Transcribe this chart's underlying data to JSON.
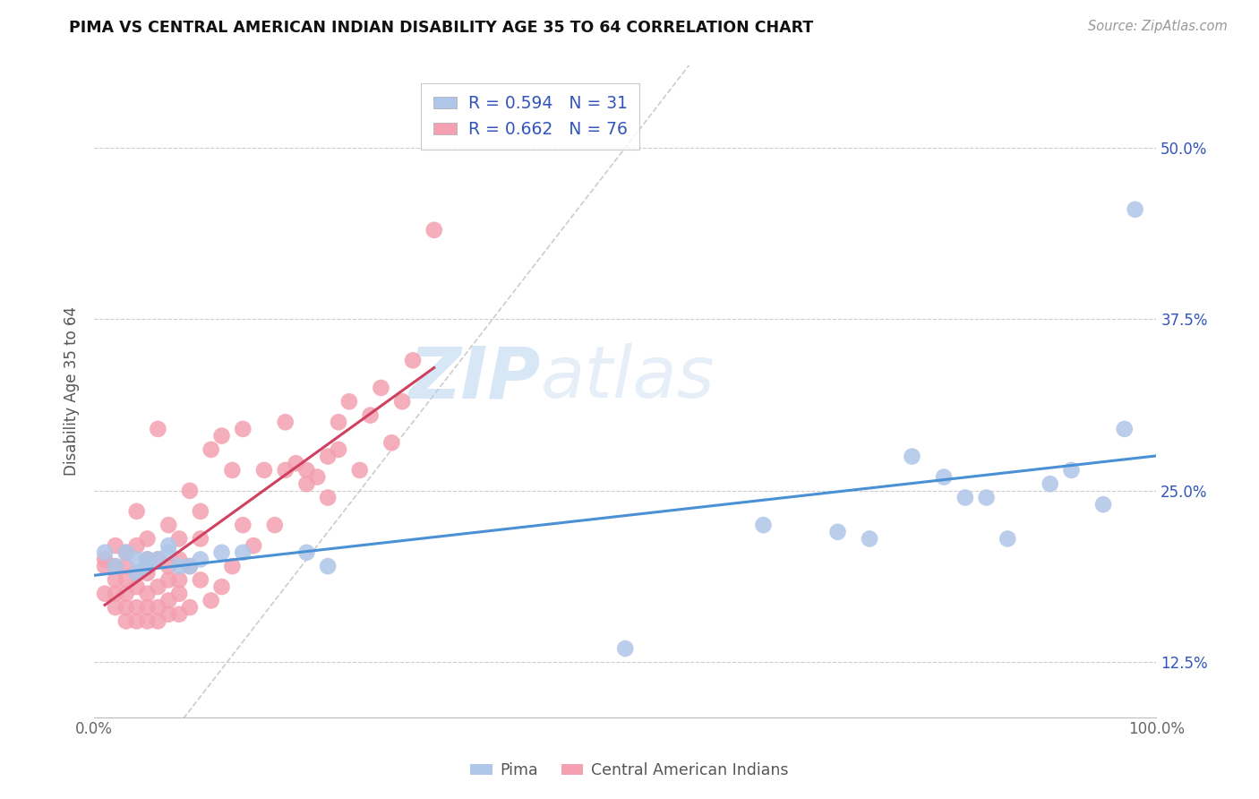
{
  "title": "PIMA VS CENTRAL AMERICAN INDIAN DISABILITY AGE 35 TO 64 CORRELATION CHART",
  "source": "Source: ZipAtlas.com",
  "ylabel": "Disability Age 35 to 64",
  "xlim": [
    0.0,
    1.0
  ],
  "ylim": [
    0.085,
    0.56
  ],
  "xticks": [
    0.0,
    0.25,
    0.5,
    0.75,
    1.0
  ],
  "xtick_labels": [
    "0.0%",
    "",
    "",
    "",
    "100.0%"
  ],
  "yticks": [
    0.125,
    0.25,
    0.375,
    0.5
  ],
  "ytick_labels": [
    "12.5%",
    "25.0%",
    "37.5%",
    "50.0%"
  ],
  "pima_R": 0.594,
  "pima_N": 31,
  "central_R": 0.662,
  "central_N": 76,
  "pima_color": "#aec6e8",
  "pima_line_color": "#4a90d4",
  "central_color": "#f4a0b0",
  "central_line_color": "#d04060",
  "diagonal_color": "#cccccc",
  "background_color": "#ffffff",
  "grid_color": "#cccccc",
  "legend_text_color": "#3355bb",
  "watermark_color": "#cce0f0",
  "pima_x": [
    0.01,
    0.02,
    0.03,
    0.04,
    0.04,
    0.05,
    0.05,
    0.06,
    0.07,
    0.07,
    0.08,
    0.09,
    0.1,
    0.12,
    0.14,
    0.2,
    0.22,
    0.5,
    0.63,
    0.7,
    0.73,
    0.77,
    0.8,
    0.82,
    0.84,
    0.86,
    0.9,
    0.92,
    0.95,
    0.97,
    0.98
  ],
  "pima_y": [
    0.205,
    0.195,
    0.205,
    0.19,
    0.2,
    0.195,
    0.2,
    0.2,
    0.205,
    0.21,
    0.195,
    0.195,
    0.2,
    0.205,
    0.205,
    0.205,
    0.195,
    0.135,
    0.225,
    0.22,
    0.215,
    0.275,
    0.26,
    0.245,
    0.245,
    0.215,
    0.255,
    0.265,
    0.24,
    0.295,
    0.455
  ],
  "central_x": [
    0.01,
    0.01,
    0.01,
    0.02,
    0.02,
    0.02,
    0.02,
    0.02,
    0.03,
    0.03,
    0.03,
    0.03,
    0.03,
    0.03,
    0.04,
    0.04,
    0.04,
    0.04,
    0.04,
    0.04,
    0.05,
    0.05,
    0.05,
    0.05,
    0.05,
    0.05,
    0.06,
    0.06,
    0.06,
    0.06,
    0.06,
    0.07,
    0.07,
    0.07,
    0.07,
    0.07,
    0.08,
    0.08,
    0.08,
    0.08,
    0.08,
    0.09,
    0.09,
    0.09,
    0.1,
    0.1,
    0.1,
    0.11,
    0.11,
    0.12,
    0.12,
    0.13,
    0.13,
    0.14,
    0.14,
    0.15,
    0.16,
    0.17,
    0.18,
    0.18,
    0.19,
    0.2,
    0.2,
    0.21,
    0.22,
    0.22,
    0.23,
    0.23,
    0.24,
    0.25,
    0.26,
    0.27,
    0.28,
    0.29,
    0.3,
    0.32
  ],
  "central_y": [
    0.195,
    0.2,
    0.175,
    0.165,
    0.175,
    0.185,
    0.195,
    0.21,
    0.155,
    0.165,
    0.175,
    0.185,
    0.195,
    0.205,
    0.155,
    0.165,
    0.18,
    0.19,
    0.21,
    0.235,
    0.155,
    0.165,
    0.175,
    0.19,
    0.2,
    0.215,
    0.155,
    0.165,
    0.18,
    0.2,
    0.295,
    0.16,
    0.17,
    0.185,
    0.195,
    0.225,
    0.16,
    0.175,
    0.185,
    0.2,
    0.215,
    0.165,
    0.195,
    0.25,
    0.185,
    0.215,
    0.235,
    0.17,
    0.28,
    0.18,
    0.29,
    0.195,
    0.265,
    0.225,
    0.295,
    0.21,
    0.265,
    0.225,
    0.265,
    0.3,
    0.27,
    0.255,
    0.265,
    0.26,
    0.245,
    0.275,
    0.28,
    0.3,
    0.315,
    0.265,
    0.305,
    0.325,
    0.285,
    0.315,
    0.345,
    0.44
  ]
}
